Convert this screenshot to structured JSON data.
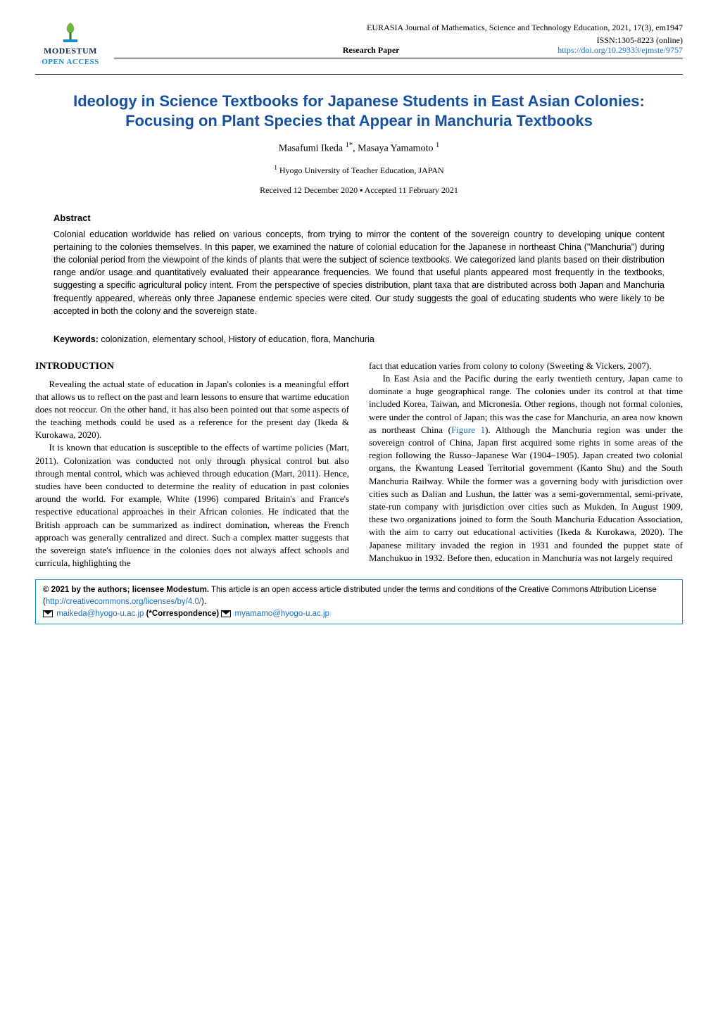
{
  "brand": {
    "name": "MODESTUM",
    "open_access": "OPEN ACCESS",
    "open_access_color": "#1390c8",
    "logo_colors": {
      "leaf": "#6fb43f",
      "stem": "#2f6f2f",
      "bar": "#1390c8"
    }
  },
  "journal": {
    "line1": "EURASIA Journal of Mathematics, Science and Technology Education, 2021, 17(3), em1947",
    "line2": "ISSN:1305-8223 (online)",
    "doi": "https://doi.org/10.29333/ejmste/9757",
    "doi_color": "#1a6fbf",
    "research_paper_label": "Research Paper"
  },
  "paper": {
    "title_line1": "Ideology in Science Textbooks for Japanese Students in East Asian Colonies:",
    "title_line2": "Focusing on Plant Species that Appear in Manchuria Textbooks",
    "title_color": "#1451a3",
    "authors_html": "Masafumi Ikeda <sup>1*</sup>, Masaya Yamamoto <sup>1</sup>",
    "affiliation": "<sup>1</sup> Hyogo University of Teacher Education, JAPAN",
    "dates": "Received 12 December 2020 ▪ Accepted 11 February 2021"
  },
  "abstract": {
    "heading": "Abstract",
    "text": "Colonial education worldwide has relied on various concepts, from trying to mirror the content of the sovereign country to developing unique content pertaining to the colonies themselves. In this paper, we examined the nature of colonial education for the Japanese in northeast China (\"Manchuria\") during the colonial period from the viewpoint of the kinds of plants that were the subject of science textbooks. We categorized land plants based on their distribution range and/or usage and quantitatively evaluated their appearance frequencies. We found that useful plants appeared most frequently in the textbooks, suggesting a specific agricultural policy intent. From the perspective of species distribution, plant taxa that are distributed across both Japan and Manchuria frequently appeared, whereas only three Japanese endemic species were cited. Our study suggests the goal of educating students who were likely to be accepted in both the colony and the sovereign state."
  },
  "keywords": {
    "label": "Keywords:",
    "text": "colonization, elementary school, History of education, flora, Manchuria"
  },
  "body": {
    "section_heading": "INTRODUCTION",
    "p1": "Revealing the actual state of education in Japan's colonies is a meaningful effort that allows us to reflect on the past and learn lessons to ensure that wartime education does not reoccur. On the other hand, it has also been pointed out that some aspects of the teaching methods could be used as a reference for the present day (Ikeda & Kurokawa, 2020).",
    "p2": "It is known that education is susceptible to the effects of wartime policies (Mart, 2011). Colonization was conducted not only through physical control but also through mental control, which was achieved through education (Mart, 2011). Hence, studies have been conducted to determine the reality of education in past colonies around the world. For example, White (1996) compared Britain's and France's respective educational approaches in their African colonies. He indicated that the British approach can be summarized as indirect domination, whereas the French approach was generally centralized and direct. Such a complex matter suggests that the sovereign state's influence in the colonies does not always affect schools and curricula, highlighting the",
    "p3": "fact that education varies from colony to colony (Sweeting & Vickers, 2007).",
    "p4a": "In East Asia and the Pacific during the early twentieth century, Japan came to dominate a huge geographical range. The colonies under its control at that time included Korea, Taiwan, and Micronesia. Other regions, though not formal colonies, were under the control of Japan; this was the case for Manchuria, an area now known as northeast China (",
    "fig_ref": "Figure 1",
    "p4b": "). Although the Manchuria region was under the sovereign control of China, Japan first acquired some rights in some areas of the region following the Russo–Japanese War (1904–1905). Japan created two colonial organs, the Kwantung Leased Territorial government (Kanto Shu) and the South Manchuria Railway. While the former was a governing body with jurisdiction over cities such as Dalian and Lushun, the latter was a semi-governmental, semi-private, state-run company with jurisdiction over cities such as Mukden. In August 1909, these two organizations joined to form the South Manchuria Education Association, with the aim to carry out educational activities (Ikeda & Kurokawa, 2020). The Japanese military invaded the region in 1931 and founded the puppet state of Manchukuo in 1932. Before then, education in Manchuria was not largely required"
  },
  "footer": {
    "copyright": "© 2021 by the authors; licensee Modestum.",
    "license_text": " This article is an open access article distributed under the terms and conditions of the Creative Commons Attribution License (",
    "license_url": "http://creativecommons.org/licenses/by/4.0/",
    "license_close": ").",
    "email1": "maikeda@hyogo-u.ac.jp",
    "corr": "(*Correspondence)",
    "email2": "myamamo@hyogo-u.ac.jp",
    "link_color": "#1a6fbf"
  }
}
